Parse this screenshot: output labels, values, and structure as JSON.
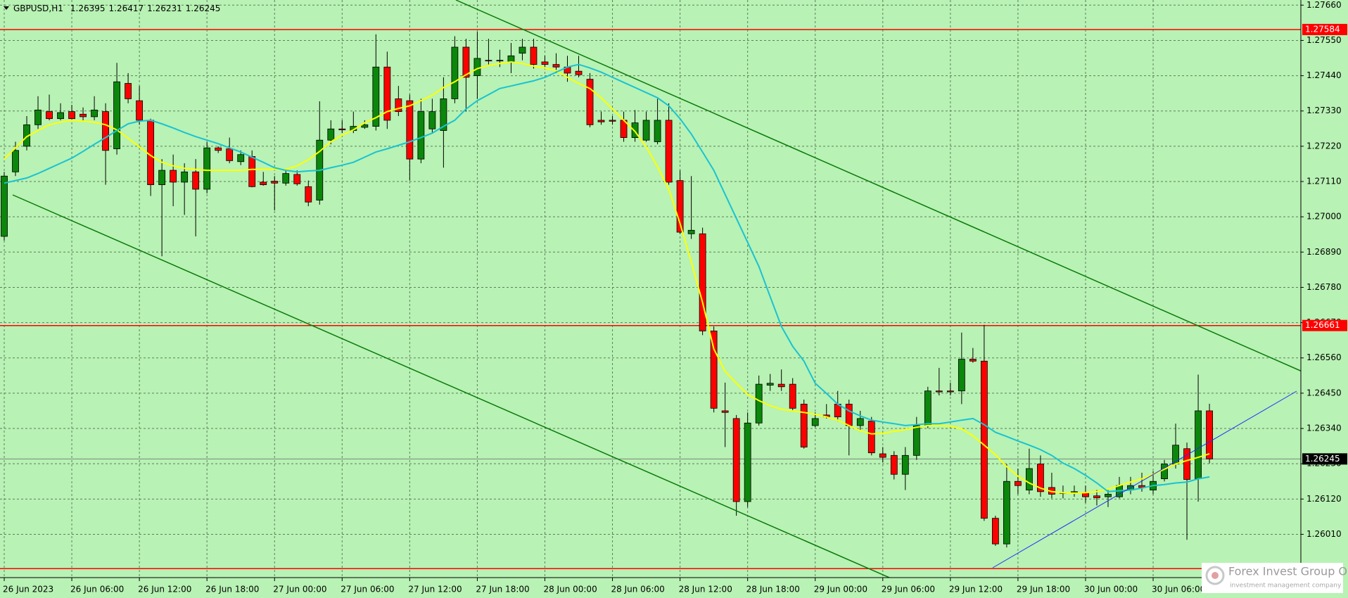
{
  "chart_data": {
    "type": "candlestick",
    "symbol": "GBPUSD,H1",
    "categories": [
      "26 Jun 2023",
      null,
      null,
      null,
      null,
      null,
      "26 Jun 06:00",
      null,
      null,
      null,
      null,
      null,
      "26 Jun 12:00",
      null,
      null,
      null,
      null,
      null,
      "26 Jun 18:00",
      null,
      null,
      null,
      null,
      null,
      "27 Jun 00:00",
      null,
      null,
      null,
      null,
      null,
      "27 Jun 06:00",
      null,
      null,
      null,
      null,
      null,
      "27 Jun 12:00",
      null,
      null,
      null,
      null,
      null,
      "27 Jun 18:00",
      null,
      null,
      null,
      null,
      null,
      "28 Jun 00:00",
      null,
      null,
      null,
      null,
      null,
      "28 Jun 06:00",
      null,
      null,
      null,
      null,
      null,
      "28 Jun 12:00",
      null,
      null,
      null,
      null,
      null,
      "28 Jun 18:00",
      null,
      null,
      null,
      null,
      null,
      "29 Jun 00:00",
      null,
      null,
      null,
      null,
      null,
      "29 Jun 06:00",
      null,
      null,
      null,
      null,
      null,
      "29 Jun 12:00",
      null,
      null,
      null,
      null,
      null,
      "29 Jun 18:00",
      null,
      null,
      null,
      null,
      null,
      "30 Jun 00:00",
      null,
      null,
      null,
      null,
      null,
      "30 Jun 06:00",
      null,
      null,
      null,
      null,
      null
    ],
    "open": [
      1.26939,
      1.2714,
      1.2722,
      1.27287,
      1.27328,
      1.27306,
      1.27328,
      1.2732,
      1.27312,
      1.27328,
      1.27212,
      1.27416,
      1.27362,
      1.27301,
      1.271,
      1.27145,
      1.27108,
      1.2714,
      1.27086,
      1.27215,
      1.27212,
      1.27172,
      1.27188,
      1.27108,
      1.27111,
      1.27105,
      1.27132,
      1.27094,
      1.27052,
      1.27239,
      1.27274,
      1.27269,
      1.27279,
      1.27282,
      1.27467,
      1.27368,
      1.27362,
      1.2718,
      1.27274,
      1.27269,
      1.27368,
      1.27529,
      1.2744,
      1.27488,
      1.27486,
      1.27483,
      1.2751,
      1.27529,
      1.27483,
      1.27475,
      1.27467,
      1.27454,
      1.27429,
      1.27301,
      1.27301,
      1.27301,
      1.27247,
      1.27239,
      1.27234,
      1.27301,
      1.27113,
      1.26947,
      1.26947,
      1.26644,
      1.26395,
      1.26371,
      1.26112,
      1.26357,
      1.26475,
      1.26478,
      1.26478,
      1.26416,
      1.26349,
      1.26382,
      1.26416,
      1.26416,
      1.26349,
      1.26363,
      1.26261,
      1.26256,
      1.26197,
      1.26256,
      1.26349,
      1.26457,
      1.26457,
      1.26457,
      1.26556,
      1.2655,
      1.2606,
      1.2598,
      1.26175,
      1.26148,
      1.26229,
      1.26156,
      1.2614,
      1.26138,
      1.2614,
      1.2613,
      1.26127,
      1.26127,
      1.26148,
      1.26162,
      1.26148,
      1.26183,
      1.26229,
      1.26277,
      1.26183,
      1.26395
    ],
    "high": [
      1.2714,
      1.27234,
      1.27314,
      1.27376,
      1.27381,
      1.27354,
      1.27349,
      1.27341,
      1.27376,
      1.27354,
      1.2748,
      1.27448,
      1.27408,
      1.27306,
      1.2718,
      1.27194,
      1.27167,
      1.2718,
      1.27234,
      1.2722,
      1.27247,
      1.27207,
      1.27207,
      1.2714,
      1.27127,
      1.27145,
      1.27145,
      1.27113,
      1.2736,
      1.27301,
      1.27301,
      1.27328,
      1.27301,
      1.27569,
      1.27515,
      1.27408,
      1.27381,
      1.27368,
      1.27368,
      1.27435,
      1.27563,
      1.27555,
      1.27577,
      1.27555,
      1.27521,
      1.27542,
      1.27555,
      1.27555,
      1.27502,
      1.2751,
      1.27502,
      1.27502,
      1.27448,
      1.27328,
      1.27314,
      1.27328,
      1.27333,
      1.27328,
      1.27368,
      1.27354,
      1.27145,
      1.27127,
      1.26966,
      1.26658,
      1.26483,
      1.26382,
      1.2639,
      1.26505,
      1.2651,
      1.26524,
      1.26497,
      1.2643,
      1.2639,
      1.26416,
      1.26457,
      1.2643,
      1.26395,
      1.26376,
      1.26282,
      1.26269,
      1.26282,
      1.26376,
      1.2647,
      1.26529,
      1.26483,
      1.26639,
      1.26591,
      1.26663,
      1.26068,
      1.26229,
      1.26215,
      1.26277,
      1.26256,
      1.26202,
      1.26162,
      1.26162,
      1.26162,
      1.26148,
      1.26148,
      1.26189,
      1.26189,
      1.26202,
      1.26207,
      1.26242,
      1.26355,
      1.26296,
      1.26508,
      1.26417
    ],
    "low": [
      1.26926,
      1.27127,
      1.27207,
      1.27274,
      1.27301,
      1.27301,
      1.27301,
      1.27301,
      1.27301,
      1.271,
      1.27194,
      1.27354,
      1.27287,
      1.27065,
      1.26877,
      1.27033,
      1.27006,
      1.26939,
      1.27073,
      1.27199,
      1.27167,
      1.27161,
      1.27092,
      1.27097,
      1.2702,
      1.27097,
      1.27097,
      1.27033,
      1.27038,
      1.27226,
      1.27261,
      1.27261,
      1.27274,
      1.27269,
      1.27274,
      1.27314,
      1.27113,
      1.27167,
      1.27261,
      1.27153,
      1.27354,
      1.27328,
      1.27368,
      1.27475,
      1.27467,
      1.27448,
      1.27488,
      1.27462,
      1.27467,
      1.27448,
      1.27421,
      1.27435,
      1.27279,
      1.27287,
      1.27287,
      1.27234,
      1.27234,
      1.27234,
      1.27226,
      1.271,
      1.26947,
      1.26931,
      1.26631,
      1.2639,
      1.26282,
      1.26068,
      1.26095,
      1.26349,
      1.26457,
      1.26457,
      1.26395,
      1.26277,
      1.26344,
      1.26371,
      1.26363,
      1.26256,
      1.26336,
      1.26256,
      1.26234,
      1.26181,
      1.26148,
      1.26242,
      1.26341,
      1.26443,
      1.26443,
      1.26416,
      1.26545,
      1.26052,
      1.25974,
      1.25969,
      1.26135,
      1.26135,
      1.26127,
      1.26122,
      1.26122,
      1.26127,
      1.26108,
      1.261,
      1.26095,
      1.26122,
      1.26135,
      1.26143,
      1.26135,
      1.26175,
      1.26215,
      1.25993,
      1.26112,
      1.26231
    ],
    "close": [
      1.27127,
      1.27207,
      1.27287,
      1.27333,
      1.27306,
      1.27325,
      1.27306,
      1.27312,
      1.27333,
      1.27207,
      1.27421,
      1.27368,
      1.27301,
      1.271,
      1.27145,
      1.27108,
      1.2714,
      1.27086,
      1.27215,
      1.27207,
      1.27175,
      1.27194,
      1.27094,
      1.271,
      1.27105,
      1.27135,
      1.27103,
      1.27046,
      1.27239,
      1.27274,
      1.27271,
      1.27282,
      1.27287,
      1.27467,
      1.27301,
      1.27328,
      1.2718,
      1.27328,
      1.27328,
      1.27368,
      1.27529,
      1.27435,
      1.27494,
      1.27486,
      1.27488,
      1.27502,
      1.27529,
      1.27475,
      1.27475,
      1.27467,
      1.27448,
      1.27443,
      1.27287,
      1.27296,
      1.27298,
      1.27247,
      1.27293,
      1.27301,
      1.27301,
      1.27108,
      1.26952,
      1.26958,
      1.26644,
      1.26403,
      1.2639,
      1.26112,
      1.26357,
      1.26478,
      1.26481,
      1.2647,
      1.26403,
      1.26282,
      1.26371,
      1.26376,
      1.26376,
      1.26349,
      1.26371,
      1.26264,
      1.2625,
      1.26197,
      1.26256,
      1.26349,
      1.26457,
      1.26454,
      1.26454,
      1.26556,
      1.2655,
      1.2606,
      1.2598,
      1.26175,
      1.26162,
      1.26215,
      1.26143,
      1.26135,
      1.26138,
      1.26143,
      1.26127,
      1.26124,
      1.26135,
      1.26162,
      1.26162,
      1.26156,
      1.26175,
      1.26229,
      1.26288,
      1.26181,
      1.26395,
      1.26245
    ],
    "lines": [
      {
        "color": "#ffff00",
        "values": [
          1.2718,
          1.27215,
          1.2725,
          1.27269,
          1.27287,
          1.27295,
          1.27301,
          1.27298,
          1.27295,
          1.27287,
          1.27271,
          1.27245,
          1.27218,
          1.27191,
          1.2717,
          1.27159,
          1.27151,
          1.27148,
          1.27145,
          1.27145,
          1.27145,
          1.27145,
          1.27148,
          1.27148,
          1.27148,
          1.27148,
          1.27159,
          1.27178,
          1.27204,
          1.27234,
          1.27255,
          1.27271,
          1.27293,
          1.27309,
          1.27328,
          1.27338,
          1.27346,
          1.27362,
          1.27379,
          1.27403,
          1.27421,
          1.27443,
          1.27462,
          1.27472,
          1.27478,
          1.27483,
          1.27478,
          1.2747,
          1.27464,
          1.27456,
          1.27435,
          1.27416,
          1.274,
          1.27371,
          1.27336,
          1.27301,
          1.27266,
          1.27218,
          1.27156,
          1.27086,
          1.26979,
          1.26859,
          1.26733,
          1.26588,
          1.26518,
          1.26481,
          1.26446,
          1.26427,
          1.26411,
          1.264,
          1.26395,
          1.2639,
          1.26384,
          1.26376,
          1.26366,
          1.26349,
          1.26333,
          1.26323,
          1.26325,
          1.26331,
          1.26336,
          1.26344,
          1.26349,
          1.26349,
          1.26347,
          1.26339,
          1.26317,
          1.26288,
          1.26258,
          1.26221,
          1.26191,
          1.2617,
          1.26154,
          1.26143,
          1.2614,
          1.26138,
          1.2614,
          1.26143,
          1.26151,
          1.26162,
          1.26173,
          1.26183,
          1.26197,
          1.26213,
          1.26229,
          1.2624,
          1.2625,
          1.26261
        ]
      },
      {
        "color": "#19c3d2",
        "values": [
          1.27105,
          1.27113,
          1.27121,
          1.27135,
          1.27151,
          1.27167,
          1.27183,
          1.27204,
          1.27226,
          1.27247,
          1.27269,
          1.2729,
          1.27298,
          1.27301,
          1.2729,
          1.27277,
          1.27263,
          1.2725,
          1.27239,
          1.27228,
          1.27215,
          1.27202,
          1.27186,
          1.2717,
          1.27153,
          1.27145,
          1.2714,
          1.27143,
          1.27145,
          1.27153,
          1.27161,
          1.2717,
          1.27186,
          1.27202,
          1.27212,
          1.27223,
          1.27234,
          1.27247,
          1.27261,
          1.27282,
          1.27301,
          1.27336,
          1.27362,
          1.27381,
          1.274,
          1.27408,
          1.27416,
          1.27424,
          1.27435,
          1.27451,
          1.27467,
          1.27475,
          1.27464,
          1.27451,
          1.27435,
          1.27419,
          1.27403,
          1.27387,
          1.27371,
          1.27346,
          1.27306,
          1.27258,
          1.27202,
          1.27145,
          1.2707,
          1.26995,
          1.2692,
          1.26845,
          1.26751,
          1.26658,
          1.26596,
          1.2655,
          1.26481,
          1.26449,
          1.26416,
          1.26395,
          1.26379,
          1.26366,
          1.2636,
          1.26355,
          1.26349,
          1.26352,
          1.26355,
          1.26355,
          1.2636,
          1.26366,
          1.26371,
          1.26352,
          1.26328,
          1.26315,
          1.26301,
          1.26288,
          1.26274,
          1.26256,
          1.26232,
          1.26215,
          1.26194,
          1.2617,
          1.26143,
          1.26146,
          1.26148,
          1.26154,
          1.26162,
          1.26165,
          1.2617,
          1.26173,
          1.26183,
          1.26189
        ]
      }
    ],
    "levels": [
      1.27584,
      1.26661
    ],
    "unlabeled_levels": [
      1.25903
    ],
    "level_color": "#ff0000",
    "up_color": "#0b870b",
    "down_color": "#ff0000",
    "wick_color": "#000000",
    "ylim": [
      1.25875,
      1.27676
    ],
    "yticks": [
      {
        "value": 1.2766,
        "label": "1.27660"
      },
      {
        "value": 1.2755,
        "label": "1.27550"
      },
      {
        "value": 1.2744,
        "label": "1.27440"
      },
      {
        "value": 1.2733,
        "label": "1.27330"
      },
      {
        "value": 1.2722,
        "label": "1.27220"
      },
      {
        "value": 1.2711,
        "label": "1.27110"
      },
      {
        "value": 1.27,
        "label": "1.27000"
      },
      {
        "value": 1.2689,
        "label": "1.26890"
      },
      {
        "value": 1.2678,
        "label": "1.26780"
      },
      {
        "value": 1.2667,
        "label": "1.26670"
      },
      {
        "value": 1.2656,
        "label": "1.26560"
      },
      {
        "value": 1.2645,
        "label": "1.26450"
      },
      {
        "value": 1.2634,
        "label": "1.26340"
      },
      {
        "value": 1.2623,
        "label": "1.26230"
      },
      {
        "value": 1.2612,
        "label": "1.26120"
      },
      {
        "value": 1.2601,
        "label": "1.26010"
      }
    ],
    "grid": true
  },
  "watermark": {
    "title": "Forex Invest Group OU",
    "subtitle": "investment management company"
  }
}
